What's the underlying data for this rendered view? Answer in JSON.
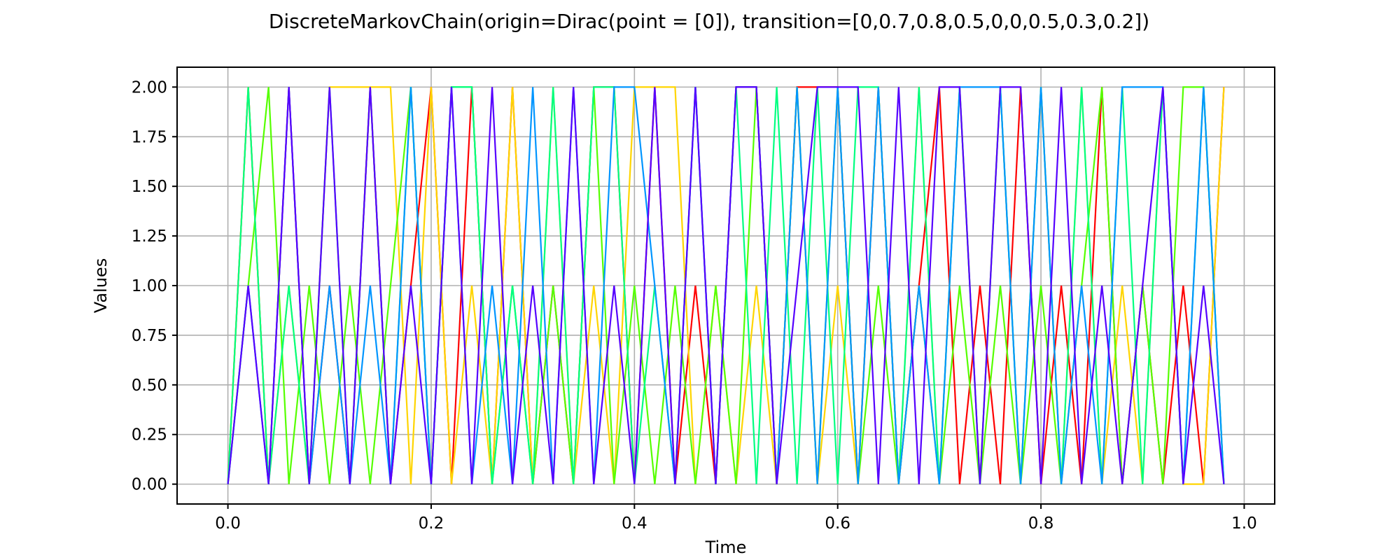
{
  "chart_data": {
    "type": "line",
    "title": "DiscreteMarkovChain(origin=Dirac(point = [0]), transition=[0,0.7,0.8,0.5,0,0,0.5,0.3,0.2])",
    "xlabel": "Time",
    "ylabel": "Values",
    "xlim": [
      -0.05,
      1.03
    ],
    "ylim": [
      -0.1,
      2.1
    ],
    "xticks": [
      0.0,
      0.2,
      0.4,
      0.6,
      0.8,
      1.0
    ],
    "xtick_labels": [
      "0.0",
      "0.2",
      "0.4",
      "0.6",
      "0.8",
      "1.0"
    ],
    "yticks": [
      0.0,
      0.25,
      0.5,
      0.75,
      1.0,
      1.25,
      1.5,
      1.75,
      2.0
    ],
    "ytick_labels": [
      "0.00",
      "0.25",
      "0.50",
      "0.75",
      "1.00",
      "1.25",
      "1.50",
      "1.75",
      "2.00"
    ],
    "grid": true,
    "x": [
      0.0,
      0.02,
      0.04,
      0.06,
      0.08,
      0.1,
      0.12,
      0.14,
      0.16,
      0.18,
      0.2,
      0.22,
      0.24,
      0.26,
      0.28,
      0.3,
      0.32,
      0.34,
      0.36,
      0.38,
      0.4,
      0.42,
      0.44,
      0.46,
      0.48,
      0.5,
      0.52,
      0.54,
      0.56,
      0.58,
      0.6,
      0.62,
      0.64,
      0.66,
      0.68,
      0.7,
      0.72,
      0.74,
      0.76,
      0.78,
      0.8,
      0.82,
      0.84,
      0.86,
      0.88,
      0.9,
      0.92,
      0.94,
      0.96,
      0.98
    ],
    "series": [
      {
        "color": "#ff0000",
        "values": [
          0,
          2,
          0,
          2,
          0,
          1,
          0,
          2,
          0,
          1,
          2,
          0,
          2,
          0,
          2,
          0,
          1,
          0,
          2,
          2,
          0,
          2,
          0,
          1,
          0,
          2,
          2,
          0,
          2,
          2,
          2,
          0,
          2,
          0,
          1,
          2,
          0,
          1,
          0,
          2,
          0,
          1,
          0,
          2,
          0,
          1,
          0,
          1,
          0,
          2
        ]
      },
      {
        "color": "#ffd500",
        "values": [
          0,
          2,
          0,
          1,
          0,
          2,
          2,
          2,
          2,
          0,
          2,
          0,
          1,
          0,
          2,
          0,
          2,
          0,
          1,
          0,
          2,
          2,
          2,
          0,
          1,
          0,
          1,
          0,
          2,
          0,
          1,
          0,
          2,
          0,
          2,
          0,
          2,
          0,
          2,
          0,
          2,
          0,
          2,
          0,
          1,
          0,
          2,
          0,
          0,
          2
        ]
      },
      {
        "color": "#55ff00",
        "values": [
          0,
          1,
          2,
          0,
          1,
          0,
          1,
          0,
          1,
          2,
          0,
          2,
          2,
          0,
          1,
          0,
          1,
          0,
          2,
          0,
          1,
          0,
          1,
          0,
          1,
          0,
          2,
          0,
          2,
          0,
          2,
          0,
          1,
          0,
          1,
          0,
          1,
          0,
          1,
          0,
          1,
          0,
          1,
          2,
          0,
          1,
          0,
          2,
          2,
          0
        ]
      },
      {
        "color": "#00ff80",
        "values": [
          0,
          2,
          0,
          1,
          0,
          2,
          0,
          2,
          0,
          2,
          0,
          2,
          2,
          0,
          1,
          0,
          2,
          0,
          2,
          2,
          0,
          1,
          0,
          2,
          0,
          2,
          0,
          2,
          0,
          2,
          0,
          2,
          2,
          0,
          2,
          0,
          2,
          0,
          2,
          0,
          2,
          0,
          2,
          0,
          2,
          0,
          2,
          0,
          2,
          0
        ]
      },
      {
        "color": "#0095ff",
        "values": [
          0,
          1,
          0,
          2,
          0,
          1,
          0,
          1,
          0,
          2,
          0,
          2,
          0,
          1,
          0,
          2,
          0,
          2,
          0,
          2,
          2,
          1,
          0,
          2,
          0,
          2,
          2,
          0,
          2,
          0,
          2,
          0,
          2,
          0,
          1,
          0,
          2,
          2,
          2,
          0,
          2,
          0,
          1,
          0,
          2,
          2,
          2,
          0,
          2,
          0
        ]
      },
      {
        "color": "#5500ff",
        "values": [
          0,
          1,
          0,
          2,
          0,
          2,
          0,
          2,
          0,
          1,
          0,
          2,
          0,
          2,
          0,
          1,
          0,
          2,
          0,
          1,
          0,
          2,
          0,
          2,
          0,
          2,
          2,
          0,
          1,
          2,
          2,
          2,
          0,
          2,
          0,
          2,
          2,
          0,
          2,
          2,
          0,
          2,
          0,
          1,
          0,
          1,
          2,
          0,
          1,
          0
        ]
      }
    ]
  }
}
